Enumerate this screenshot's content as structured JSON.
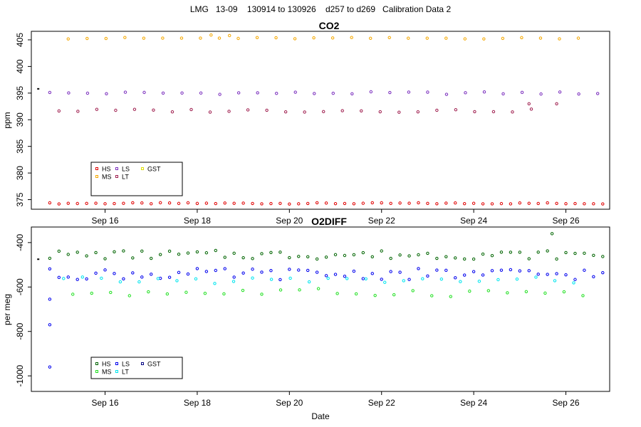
{
  "title": "LMG   13-09    130914 to 130926    d257 to d269   Calibration Data 2",
  "chart_data": [
    {
      "type": "scatter",
      "title": "CO2",
      "ylabel": "ppm",
      "xlabel": "",
      "x_unit": "days (Sep 2013)",
      "xlim": [
        14.4,
        26.95
      ],
      "ylim": [
        373.2,
        406.6
      ],
      "y_ticks": [
        375,
        380,
        385,
        390,
        395,
        400,
        405
      ],
      "x_ticks": [
        {
          "value": 16,
          "label": "Sep 16"
        },
        {
          "value": 18,
          "label": "Sep 18"
        },
        {
          "value": 20,
          "label": "Sep 20"
        },
        {
          "value": 22,
          "label": "Sep 22"
        },
        {
          "value": 24,
          "label": "Sep 24"
        },
        {
          "value": 26,
          "label": "Sep 26"
        }
      ],
      "legend": {
        "placement": "bottom-left",
        "entries": [
          {
            "name": "HS",
            "color": "#e00000"
          },
          {
            "name": "LS",
            "color": "#7b2fbe"
          },
          {
            "name": "GST",
            "color": "#dede00"
          },
          {
            "name": "MS",
            "color": "#f5a800"
          },
          {
            "name": "LT",
            "color": "#a02050"
          }
        ]
      },
      "series": [
        {
          "name": "HS",
          "color": "#e00000",
          "start": 14.8,
          "step": 0.2,
          "count": 61,
          "base": 374.3,
          "spread": 0.12,
          "extras": []
        },
        {
          "name": "LS",
          "color": "#7b2fbe",
          "start": 14.8,
          "step": 0.41,
          "count": 30,
          "base": 395.0,
          "spread": 0.25,
          "extras": []
        },
        {
          "name": "MS",
          "color": "#f5a800",
          "start": 15.2,
          "step": 0.41,
          "count": 28,
          "base": 405.3,
          "spread": 0.15,
          "extras": [
            {
              "x": 18.3,
              "y": 405.9
            },
            {
              "x": 18.7,
              "y": 405.8
            }
          ]
        },
        {
          "name": "LT",
          "color": "#a02050",
          "start": 15.0,
          "step": 0.41,
          "count": 26,
          "base": 391.7,
          "spread": 0.3,
          "extras": [
            {
              "x": 25.2,
              "y": 393.0
            },
            {
              "x": 25.8,
              "y": 393.0
            }
          ]
        },
        {
          "name": "GST",
          "color": "#000000",
          "start": 14.55,
          "step": 0.2,
          "count": 1,
          "base": 395.8,
          "spread": 0,
          "extras": []
        }
      ]
    },
    {
      "type": "scatter",
      "title": "O2DIFF",
      "ylabel": "per meg",
      "xlabel": "Date",
      "x_unit": "days (Sep 2013)",
      "xlim": [
        14.4,
        26.95
      ],
      "ylim": [
        -1070,
        -330
      ],
      "y_ticks": [
        -400,
        -600,
        -800,
        -1000
      ],
      "x_ticks": [
        {
          "value": 16,
          "label": "Sep 16"
        },
        {
          "value": 18,
          "label": "Sep 18"
        },
        {
          "value": 20,
          "label": "Sep 20"
        },
        {
          "value": 22,
          "label": "Sep 22"
        },
        {
          "value": 24,
          "label": "Sep 24"
        },
        {
          "value": 26,
          "label": "Sep 26"
        }
      ],
      "legend": {
        "placement": "bottom-left",
        "entries": [
          {
            "name": "HS",
            "color": "#006400"
          },
          {
            "name": "LS",
            "color": "#0000ee"
          },
          {
            "name": "GST",
            "color": "#000080"
          },
          {
            "name": "MS",
            "color": "#22e022"
          },
          {
            "name": "LT",
            "color": "#00e5ee"
          }
        ]
      },
      "series": [
        {
          "name": "HS",
          "color": "#006400",
          "start": 14.8,
          "step": 0.2,
          "count": 61,
          "base": -455,
          "spread": 20,
          "extras": [
            {
              "x": 25.7,
              "y": -360
            }
          ]
        },
        {
          "name": "LS",
          "color": "#0000ee",
          "start": 14.8,
          "step": 0.2,
          "count": 61,
          "base": -542,
          "spread": 25,
          "extras": [
            {
              "x": 14.8,
              "y": -655
            },
            {
              "x": 14.8,
              "y": -770
            },
            {
              "x": 14.8,
              "y": -960
            }
          ]
        },
        {
          "name": "MS",
          "color": "#22e022",
          "start": 15.3,
          "step": 0.41,
          "count": 28,
          "base": -625,
          "spread": 18,
          "extras": []
        },
        {
          "name": "LT",
          "color": "#00e5ee",
          "start": 15.1,
          "step": 0.41,
          "count": 28,
          "base": -570,
          "spread": 15,
          "extras": []
        },
        {
          "name": "GST",
          "color": "#000000",
          "start": 14.55,
          "step": 0.2,
          "count": 1,
          "base": -475,
          "spread": 0,
          "extras": []
        }
      ]
    }
  ]
}
